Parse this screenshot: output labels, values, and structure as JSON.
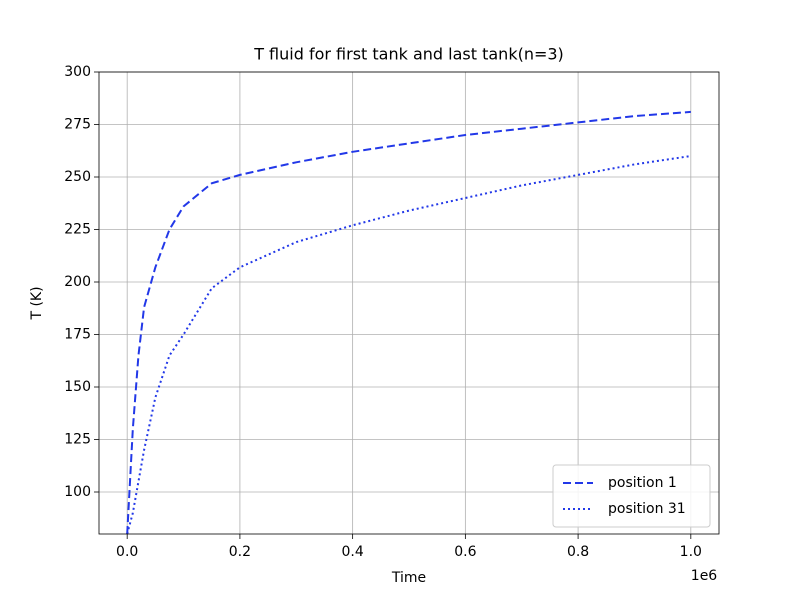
{
  "chart_data": {
    "type": "line",
    "title": "T fluid for first tank and last tank(n=3)",
    "x_label": "Time",
    "y_label": "T (K)",
    "x_offset_label": "1e6",
    "x": [
      0,
      10000,
      20000,
      30000,
      50000,
      75000,
      100000,
      150000,
      200000,
      300000,
      400000,
      500000,
      600000,
      700000,
      800000,
      900000,
      1000000
    ],
    "series": [
      {
        "name": "position 1",
        "color": "#2238e8",
        "dash": "dashed",
        "values": [
          80,
          130,
          165,
          188,
          207,
          225,
          236,
          247,
          251,
          257,
          262,
          266,
          270,
          273,
          276,
          279,
          281
        ]
      },
      {
        "name": "position 31",
        "color": "#2238e8",
        "dash": "dotted",
        "values": [
          80,
          90,
          105,
          120,
          145,
          165,
          175,
          197,
          207,
          219,
          227,
          234,
          240,
          246,
          251,
          256,
          260
        ]
      }
    ],
    "xlim": [
      -50000,
      1050000
    ],
    "xticks": [
      {
        "value": 0,
        "label": "0.0"
      },
      {
        "value": 200000,
        "label": "0.2"
      },
      {
        "value": 400000,
        "label": "0.4"
      },
      {
        "value": 600000,
        "label": "0.6"
      },
      {
        "value": 800000,
        "label": "0.8"
      },
      {
        "value": 1000000,
        "label": "1.0"
      }
    ],
    "ylim": [
      80,
      300
    ],
    "yticks": [
      100,
      125,
      150,
      175,
      200,
      225,
      250,
      275,
      300
    ],
    "grid": true,
    "legend": "lower right"
  }
}
